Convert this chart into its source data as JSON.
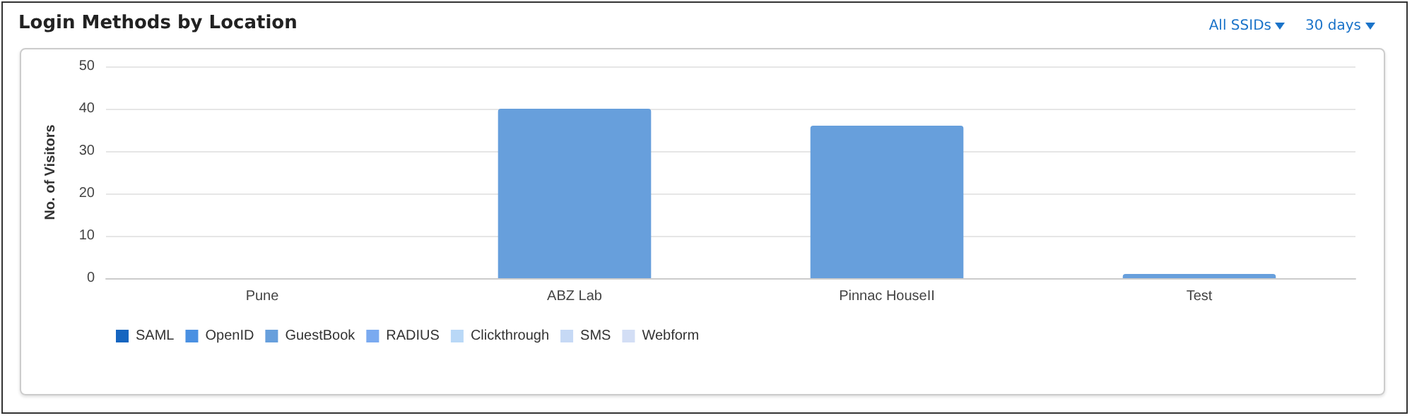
{
  "chart_data": {
    "type": "bar",
    "title": "Login Methods by Location",
    "ylabel": "No. of Visitors",
    "annotations": [
      "All SSIDs",
      "30 days"
    ],
    "categories": [
      "Pune",
      "ABZ Lab",
      "Pinnac HouseII",
      "Test"
    ],
    "stacked": true,
    "ylim": [
      0,
      50
    ],
    "yticks": [
      0,
      10,
      20,
      30,
      40,
      50
    ],
    "grid": "y",
    "legend": "bottom left",
    "series": [
      {
        "name": "SAML",
        "color": "#1565c0",
        "values": [
          0,
          0,
          0,
          0
        ]
      },
      {
        "name": "OpenID",
        "color": "#4a90e2",
        "values": [
          0,
          0,
          0,
          0
        ]
      },
      {
        "name": "GuestBook",
        "color": "#679fdc",
        "values": [
          0,
          40,
          36,
          1
        ]
      },
      {
        "name": "RADIUS",
        "color": "#7aaaf0",
        "values": [
          0,
          0,
          0,
          0
        ]
      },
      {
        "name": "Clickthrough",
        "color": "#b9d8f7",
        "values": [
          0,
          0,
          0,
          0
        ]
      },
      {
        "name": "SMS",
        "color": "#c6d9f5",
        "values": [
          0,
          0,
          0,
          0
        ]
      },
      {
        "name": "Webform",
        "color": "#d3def5",
        "values": [
          0,
          0,
          0,
          0
        ]
      }
    ]
  }
}
